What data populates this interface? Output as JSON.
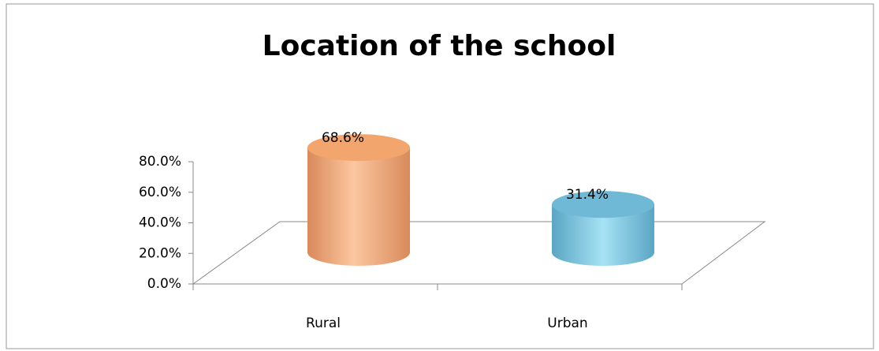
{
  "chart_data": {
    "type": "cylinder",
    "title": "Location of the school",
    "categories": [
      "Rural",
      "Urban"
    ],
    "values": [
      68.6,
      31.4
    ],
    "value_labels": [
      "68.6%",
      "31.4%"
    ],
    "colors": [
      "#f2a66e",
      "#6fb9d6"
    ],
    "ylim": [
      0,
      80
    ],
    "yticks": [
      {
        "value": 0,
        "label": "0.0%"
      },
      {
        "value": 20,
        "label": "20.0%"
      },
      {
        "value": 40,
        "label": "40.0%"
      },
      {
        "value": 60,
        "label": "60.0%"
      },
      {
        "value": 80,
        "label": "80.0%"
      }
    ]
  }
}
